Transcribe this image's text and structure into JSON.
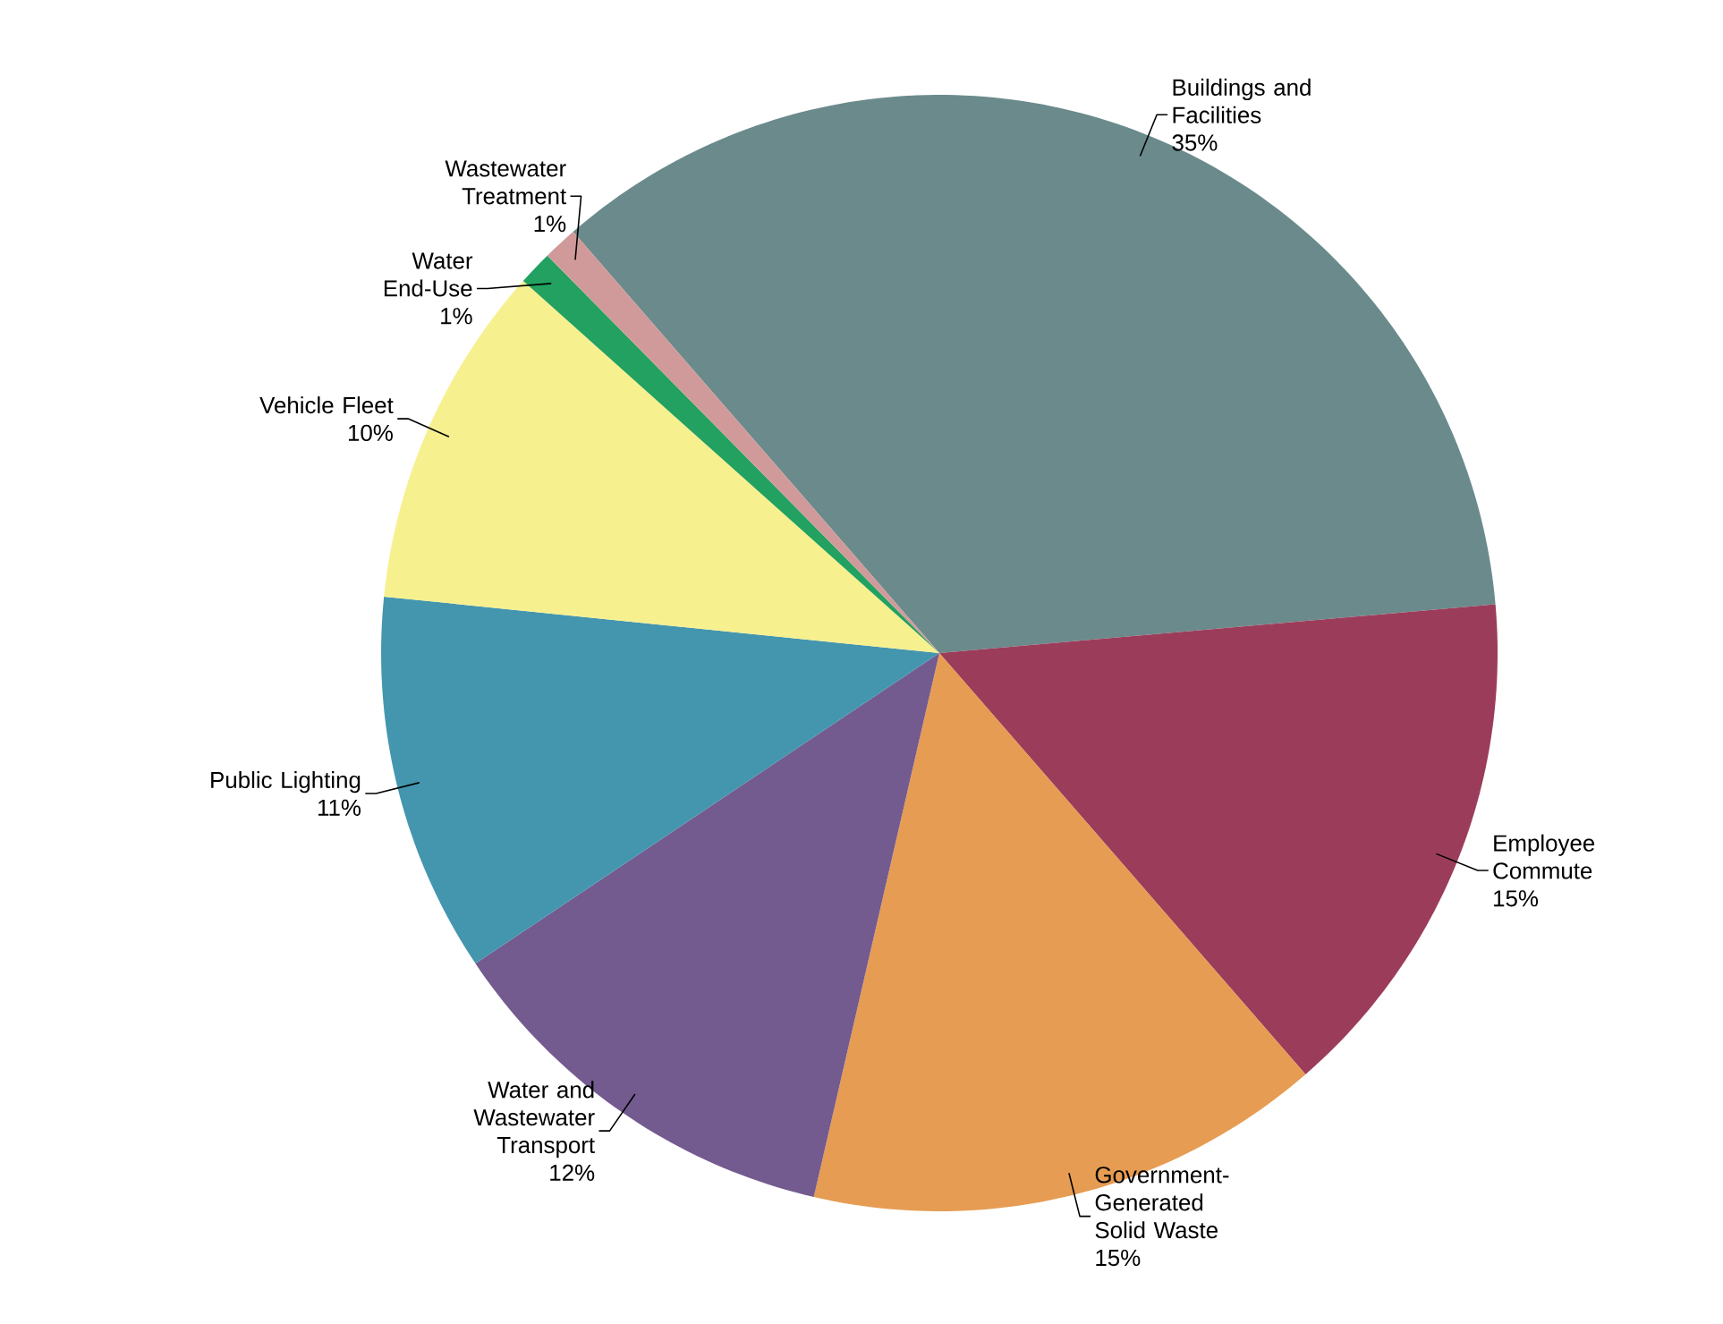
{
  "chart_data": {
    "type": "pie",
    "categories": [
      "Buildings and Facilities",
      "Employee Commute",
      "Government-Generated Solid Waste",
      "Water and Wastewater Transport",
      "Public Lighting",
      "Vehicle Fleet",
      "Water End-Use",
      "Wastewater Treatment"
    ],
    "values": [
      35,
      15,
      15,
      12,
      11,
      10,
      1,
      1
    ],
    "value_labels": [
      "35%",
      "15%",
      "15%",
      "12%",
      "11%",
      "10%",
      "1%",
      "1%"
    ],
    "colors": [
      "#6b8a8c",
      "#9b3d5a",
      "#e69c52",
      "#735a8f",
      "#4496ae",
      "#f7f08f",
      "#22a160",
      "#d09a9a"
    ]
  }
}
